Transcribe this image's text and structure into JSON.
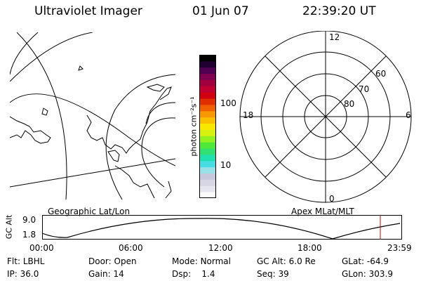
{
  "header": {
    "title": "Ultraviolet Imager",
    "date": "01 Jun 07",
    "time": "22:39:20 UT"
  },
  "colorbar": {
    "unit_label": "photon cm⁻²s⁻¹",
    "ticks": [
      {
        "value": 100,
        "label": "100"
      },
      {
        "value": 10,
        "label": "10"
      }
    ],
    "colors": [
      "#fafafa",
      "#e6e6ee",
      "#d6d6e4",
      "#c8c8dc",
      "#9ae0e8",
      "#48dce4",
      "#20e0b0",
      "#30e070",
      "#50e838",
      "#90f020",
      "#d8f010",
      "#f8e800",
      "#f8c000",
      "#f89800",
      "#f06000",
      "#e03000",
      "#d00010",
      "#c00030",
      "#a00040",
      "#800050",
      "#500050",
      "#200030",
      "#000000"
    ]
  },
  "polar": {
    "mlt_labels": {
      "top": "12",
      "left": "18",
      "right": "6",
      "bottom": "0"
    },
    "lat_labels": [
      "60",
      "70",
      "80"
    ]
  },
  "panel_labels": {
    "left": "Geographic Lat/Lon",
    "right": "Apex MLat/MLT"
  },
  "altitude_plot": {
    "ylabel": "GC Alt",
    "y_ticks": [
      "9.0",
      "1.8"
    ],
    "x_ticks": [
      "00:00",
      "06:00",
      "12:00",
      "18:00",
      "23:59"
    ],
    "marker_color": "#c00000"
  },
  "info": {
    "row1": [
      {
        "key": "Flt:",
        "value": "LBHL"
      },
      {
        "key": "Door:",
        "value": "Open"
      },
      {
        "key": "Mode:",
        "value": "Normal"
      },
      {
        "key": "GC Alt:",
        "value": "6.0 Re"
      },
      {
        "key": "GLat:",
        "value": "-64.9"
      }
    ],
    "row2": [
      {
        "key": "IP:",
        "value": "36.0"
      },
      {
        "key": "Gain:",
        "value": "14"
      },
      {
        "key": "Dsp:",
        "value": "1.4"
      },
      {
        "key": "Seq:",
        "value": "39"
      },
      {
        "key": "GLon:",
        "value": "303.9"
      }
    ]
  }
}
